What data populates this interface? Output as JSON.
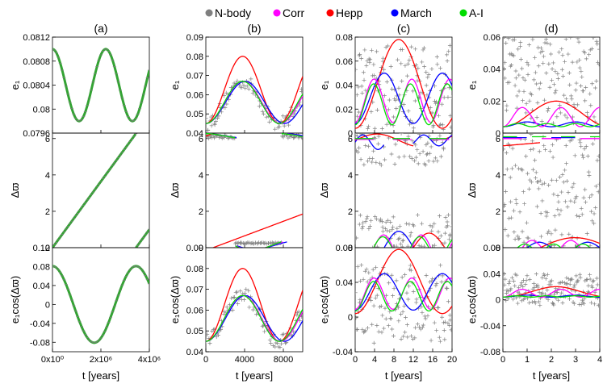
{
  "legend": [
    {
      "label": "N-body",
      "color": "#7f7f7f"
    },
    {
      "label": "Corr",
      "color": "#ff00ff"
    },
    {
      "label": "Hepp",
      "color": "#ff0000"
    },
    {
      "label": "March",
      "color": "#0000ff"
    },
    {
      "label": "A-I",
      "color": "#00dd00"
    }
  ],
  "columns": [
    {
      "label": "(a)",
      "xlabel": "t [years]",
      "xlim": [
        0,
        4000000
      ],
      "xticks": [
        "0x10⁰",
        "2x10⁶",
        "4x10⁶"
      ],
      "xtick_values": [
        0,
        2000000,
        4000000
      ],
      "rows": [
        {
          "ylabel": "e₁",
          "ylim": [
            0.0796,
            0.0812
          ],
          "yticks": [
            "0.0796",
            "0.08",
            "0.0804",
            "0.0808",
            "0.0812"
          ],
          "ytick_values": [
            0.0796,
            0.08,
            0.0804,
            0.0808,
            0.0812
          ]
        },
        {
          "ylabel": "Δϖ",
          "ylim": [
            0,
            6.3
          ],
          "yticks": [
            "0",
            "2",
            "4",
            "6"
          ],
          "ytick_values": [
            0,
            2,
            4,
            6
          ]
        },
        {
          "ylabel": "e₁cos(Δϖ)",
          "ylim": [
            -0.1,
            0.12
          ],
          "yticks": [
            "-0.08",
            "-0.04",
            "0",
            "0.04",
            "0.08",
            "0.12"
          ],
          "ytick_values": [
            -0.08,
            -0.04,
            0,
            0.04,
            0.08,
            0.12
          ]
        }
      ]
    },
    {
      "label": "(b)",
      "xlabel": "t [years]",
      "xlim": [
        0,
        10000
      ],
      "xticks": [
        "0",
        "4000",
        "8000"
      ],
      "xtick_values": [
        0,
        4000,
        8000
      ],
      "rows": [
        {
          "ylabel": "e₁",
          "ylim": [
            0.04,
            0.09
          ],
          "yticks": [
            "0.04",
            "0.05",
            "0.06",
            "0.07",
            "0.08",
            "0.09"
          ],
          "ytick_values": [
            0.04,
            0.05,
            0.06,
            0.07,
            0.08,
            0.09
          ]
        },
        {
          "ylabel": "Δϖ",
          "ylim": [
            0,
            6.3
          ],
          "yticks": [
            "0",
            "2",
            "4",
            "6"
          ],
          "ytick_values": [
            0,
            2,
            4,
            6
          ]
        },
        {
          "ylabel": "e₁cos(Δϖ)",
          "ylim": [
            0.04,
            0.09
          ],
          "yticks": [
            "0.04",
            "0.05",
            "0.06",
            "0.07",
            "0.08",
            "0.09"
          ],
          "ytick_values": [
            0.04,
            0.05,
            0.06,
            0.07,
            0.08,
            0.09
          ]
        }
      ]
    },
    {
      "label": "(c)",
      "xlabel": "t [years]",
      "xlim": [
        0,
        20
      ],
      "xticks": [
        "0",
        "4",
        "8",
        "12",
        "16",
        "20"
      ],
      "xtick_values": [
        0,
        4,
        8,
        12,
        16,
        20
      ],
      "rows": [
        {
          "ylabel": "e₁",
          "ylim": [
            0,
            0.08
          ],
          "yticks": [
            "0",
            "0.02",
            "0.04",
            "0.06",
            "0.08"
          ],
          "ytick_values": [
            0,
            0.02,
            0.04,
            0.06,
            0.08
          ]
        },
        {
          "ylabel": "Δϖ",
          "ylim": [
            0,
            6.3
          ],
          "yticks": [
            "0",
            "2",
            "4",
            "6"
          ],
          "ytick_values": [
            0,
            2,
            4,
            6
          ]
        },
        {
          "ylabel": "e₁cos(Δϖ)",
          "ylim": [
            -0.04,
            0.08
          ],
          "yticks": [
            "-0.04",
            "0",
            "0.04",
            "0.08"
          ],
          "ytick_values": [
            -0.04,
            0,
            0.04,
            0.08
          ]
        }
      ]
    },
    {
      "label": "(d)",
      "xlabel": "t [years]",
      "xlim": [
        0,
        4
      ],
      "xticks": [
        "0",
        "1",
        "2",
        "3",
        "4"
      ],
      "xtick_values": [
        0,
        1,
        2,
        3,
        4
      ],
      "rows": [
        {
          "ylabel": "e₁",
          "ylim": [
            0,
            0.06
          ],
          "yticks": [
            "0",
            "0.02",
            "0.04",
            "0.06"
          ],
          "ytick_values": [
            0,
            0.02,
            0.04,
            0.06
          ]
        },
        {
          "ylabel": "Δϖ",
          "ylim": [
            0,
            6.3
          ],
          "yticks": [
            "0",
            "2",
            "4",
            "6"
          ],
          "ytick_values": [
            0,
            2,
            4,
            6
          ]
        },
        {
          "ylabel": "e₁cos(Δϖ)",
          "ylim": [
            -0.08,
            0.08
          ],
          "yticks": [
            "-0.08",
            "-0.04",
            "0",
            "0.04",
            "0.08"
          ],
          "ytick_values": [
            -0.08,
            -0.04,
            0,
            0.04,
            0.08
          ]
        }
      ]
    }
  ],
  "chart_data": {
    "type": "line",
    "title": "",
    "legend": [
      "N-body",
      "Corr",
      "Hepp",
      "March",
      "A-I"
    ],
    "panels": [
      {
        "panel": "(a)",
        "x": [
          0,
          500000,
          1000000,
          1500000,
          2000000,
          2500000,
          3000000,
          3500000,
          4000000
        ],
        "e1": {
          "N-body": [
            0.081,
            0.0807,
            0.0802,
            0.0798,
            0.0798,
            0.0802,
            0.0807,
            0.081,
            0.0807
          ],
          "A-I": [
            0.081,
            0.0807,
            0.0802,
            0.0798,
            0.0798,
            0.0802,
            0.0807,
            0.081,
            0.0807
          ]
        },
        "dvarpi": {
          "N-body": [
            0,
            0.9,
            1.9,
            2.8,
            3.7,
            4.6,
            5.6,
            0.2,
            1.3
          ]
        },
        "e1cos": {
          "N-body": [
            0.081,
            0.05,
            -0.03,
            -0.075,
            -0.07,
            -0.01,
            0.063,
            0.08,
            0.01
          ]
        }
      },
      {
        "panel": "(b)",
        "x": [
          0,
          1000,
          2000,
          3000,
          4000,
          5000,
          6000,
          7000,
          8000,
          9000,
          10000
        ],
        "e1": {
          "N-body": [
            0.045,
            0.048,
            0.056,
            0.064,
            0.067,
            0.063,
            0.054,
            0.047,
            0.047,
            0.054,
            0.062
          ],
          "Corr": [
            0.045,
            0.048,
            0.056,
            0.064,
            0.067,
            0.063,
            0.054,
            0.047,
            0.047,
            0.055,
            0.063
          ],
          "Hepp": [
            0.045,
            0.049,
            0.059,
            0.071,
            0.079,
            0.078,
            0.07,
            0.058,
            0.048,
            0.047,
            0.055
          ],
          "March": [
            0.045,
            0.048,
            0.055,
            0.063,
            0.067,
            0.064,
            0.057,
            0.049,
            0.046,
            0.051,
            0.06
          ],
          "A-I": [
            0.045,
            0.048,
            0.056,
            0.064,
            0.067,
            0.063,
            0.054,
            0.047,
            0.047,
            0.055,
            0.063
          ]
        }
      },
      {
        "panel": "(c)",
        "x": [
          0,
          2,
          4,
          6,
          8,
          10,
          12,
          14,
          16,
          18,
          20
        ],
        "e1": {
          "Hepp": [
            0.01,
            0.03,
            0.055,
            0.072,
            0.078,
            0.073,
            0.056,
            0.033,
            0.013,
            0.005,
            0.016
          ],
          "March": [
            0.012,
            0.022,
            0.04,
            0.05,
            0.045,
            0.027,
            0.012,
            0.017,
            0.035,
            0.049,
            0.044
          ],
          "Corr": [
            0.01,
            0.03,
            0.045,
            0.035,
            0.014,
            0.02,
            0.042,
            0.04,
            0.015,
            0.02,
            0.044
          ],
          "A-I": [
            0.008,
            0.026,
            0.042,
            0.032,
            0.01,
            0.016,
            0.038,
            0.036,
            0.011,
            0.018,
            0.04
          ]
        }
      },
      {
        "panel": "(d)",
        "x": [
          0,
          0.5,
          1,
          1.5,
          2,
          2.5,
          3,
          3.5,
          4
        ],
        "e1": {
          "Hepp": [
            0.004,
            0.008,
            0.013,
            0.018,
            0.02,
            0.018,
            0.013,
            0.007,
            0.004
          ],
          "Corr": [
            0.004,
            0.011,
            0.014,
            0.006,
            0.006,
            0.014,
            0.012,
            0.005,
            0.013
          ],
          "March": [
            0.004,
            0.006,
            0.007,
            0.006,
            0.005,
            0.006,
            0.007,
            0.005,
            0.004
          ],
          "A-I": [
            0.004,
            0.005,
            0.006,
            0.005,
            0.004,
            0.005,
            0.006,
            0.005,
            0.004
          ]
        }
      }
    ]
  }
}
